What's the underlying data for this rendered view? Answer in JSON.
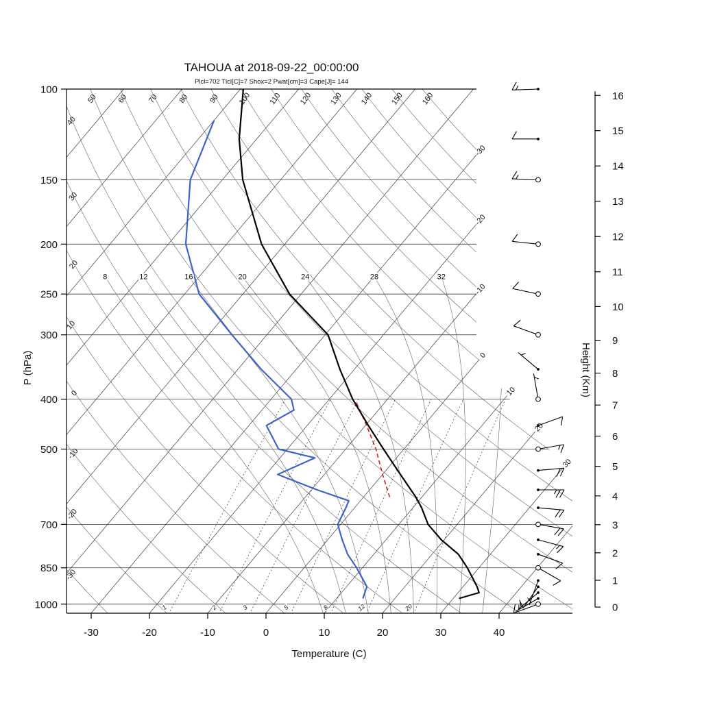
{
  "title": "TAHOUA at 2018-09-22_00:00:00",
  "subtitle": "Plcl=702 Tlcl[C]=7 Shox=2 Pwat[cm]=3 Cape[J]= 144",
  "axes": {
    "pressure_axis_label": "P (hPa)",
    "pressure_ticks": [
      100,
      150,
      200,
      250,
      300,
      400,
      500,
      700,
      850,
      1000
    ],
    "temperature_axis_label": "Temperature (C)",
    "temperature_ticks": [
      -30,
      -20,
      -10,
      0,
      10,
      20,
      30,
      40
    ],
    "height_axis_label": "Height (Km)",
    "height_ticks": [
      0,
      1,
      2,
      3,
      4,
      5,
      6,
      7,
      8,
      9,
      10,
      11,
      12,
      13,
      14,
      15,
      16
    ]
  },
  "background_labels": {
    "isotherms_right_edge": [
      -30,
      -20,
      -10,
      0,
      10,
      20,
      30
    ],
    "dry_adiabats": [
      -30,
      -20,
      -10,
      0,
      10,
      20,
      30,
      40,
      50,
      60,
      70,
      80,
      90,
      100,
      110,
      120,
      130,
      140,
      150,
      160
    ],
    "moist_adiabats": [
      8,
      12,
      16,
      20,
      24,
      28,
      32
    ],
    "moist_adiabats_drawn": [
      8,
      12,
      16,
      20,
      24,
      28,
      32,
      36
    ],
    "mixing_ratio_g_kg": [
      1,
      2,
      3,
      5,
      8,
      12,
      20
    ]
  },
  "chart_data": {
    "type": "line",
    "chart_kind": "skew-T log-p thermodynamic sounding",
    "station": "TAHOUA",
    "datetime": "2018-09-22_00:00:00",
    "indices": {
      "Plcl_hPa": 702,
      "Tlcl_C": 7,
      "Shox": 2,
      "Pwat_cm": 3,
      "Cape_J": 144
    },
    "axis_ranges": {
      "pressure_hPa": [
        100,
        1045
      ],
      "temperature_C": [
        -35,
        47
      ],
      "height_km": [
        0,
        16
      ]
    },
    "temperature_profile": {
      "pressure_hPa": [
        975,
        950,
        925,
        850,
        800,
        750,
        700,
        650,
        620,
        550,
        500,
        450,
        400,
        350,
        300,
        250,
        200,
        150,
        125,
        100
      ],
      "temperature_C": [
        31.0,
        33.6,
        32.4,
        28.0,
        24.5,
        19.5,
        15.0,
        11.5,
        9.0,
        2.0,
        -3.5,
        -9.5,
        -16.0,
        -22.5,
        -29.5,
        -42.0,
        -54.0,
        -66.5,
        -73.0,
        -79.5
      ]
    },
    "dewpoint_profile": {
      "pressure_hPa": [
        975,
        950,
        925,
        850,
        800,
        750,
        700,
        650,
        630,
        600,
        560,
        520,
        500,
        450,
        420,
        400,
        350,
        300,
        250,
        200,
        150,
        115
      ],
      "dewpoint_C": [
        14.5,
        14.0,
        13.5,
        9.0,
        5.5,
        2.5,
        -0.5,
        -1.5,
        -2.0,
        -9.0,
        -18.0,
        -14.0,
        -21.5,
        -27.0,
        -24.5,
        -26.5,
        -36.0,
        -46.0,
        -57.5,
        -67.0,
        -75.5,
        -80.0
      ]
    },
    "parcel_path": {
      "pressure_hPa": [
        620,
        560,
        500,
        450,
        405
      ],
      "temperature_C": [
        4.5,
        0.0,
        -4.8,
        -9.8,
        -15.0
      ]
    },
    "winds": [
      {
        "p": 1000,
        "spd": 8,
        "dir": 250
      },
      {
        "p": 975,
        "spd": 5,
        "dir": 240
      },
      {
        "p": 950,
        "spd": 5,
        "dir": 230
      },
      {
        "p": 925,
        "spd": 8,
        "dir": 215
      },
      {
        "p": 900,
        "spd": 5,
        "dir": 200
      },
      {
        "p": 850,
        "spd": 10,
        "dir": 120
      },
      {
        "p": 800,
        "spd": 12,
        "dir": 110
      },
      {
        "p": 750,
        "spd": 15,
        "dir": 105
      },
      {
        "p": 700,
        "spd": 18,
        "dir": 100
      },
      {
        "p": 650,
        "spd": 22,
        "dir": 95
      },
      {
        "p": 600,
        "spd": 25,
        "dir": 90
      },
      {
        "p": 550,
        "spd": 20,
        "dir": 85
      },
      {
        "p": 500,
        "spd": 15,
        "dir": 80
      },
      {
        "p": 450,
        "spd": 8,
        "dir": 70
      },
      {
        "p": 400,
        "spd": 5,
        "dir": 350
      },
      {
        "p": 350,
        "spd": 5,
        "dir": 310
      },
      {
        "p": 300,
        "spd": 8,
        "dir": 290
      },
      {
        "p": 250,
        "spd": 10,
        "dir": 282
      },
      {
        "p": 200,
        "spd": 12,
        "dir": 276
      },
      {
        "p": 150,
        "spd": 15,
        "dir": 272
      },
      {
        "p": 125,
        "spd": 12,
        "dir": 270
      },
      {
        "p": 100,
        "spd": 15,
        "dir": 268
      }
    ],
    "wind_circle_levels": [
      1000,
      850,
      700,
      500,
      400,
      300,
      250,
      200,
      150
    ]
  },
  "colors": {
    "temperature_line": "#000000",
    "dewpoint_line": "#3b64c8",
    "parcel_line": "#cc2020",
    "subtitle_text": "#b5432f",
    "grid_line": "#3a3a3a",
    "adiabat_line": "#555555"
  }
}
